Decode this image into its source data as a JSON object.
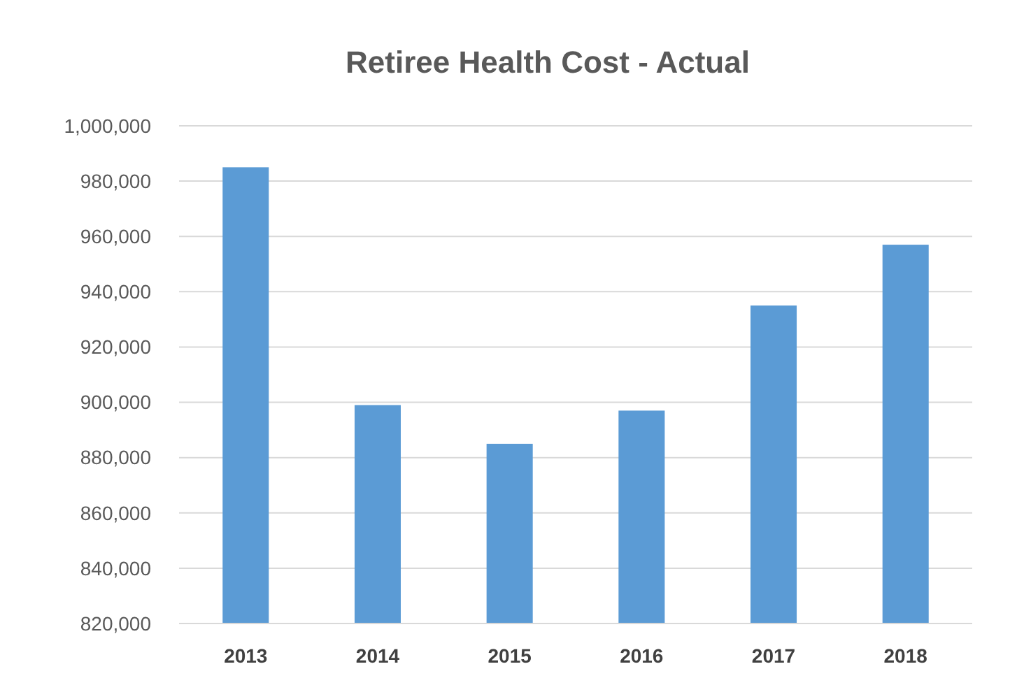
{
  "chart_data": {
    "type": "bar",
    "title": "Retiree Health Cost - Actual",
    "categories": [
      "2013",
      "2014",
      "2015",
      "2016",
      "2017",
      "2018"
    ],
    "values": [
      985000,
      899000,
      885000,
      897000,
      935000,
      957000
    ],
    "color": "#5b9bd5",
    "ylim": [
      820000,
      1000000
    ],
    "yticks": [
      {
        "value": 820000,
        "label": "820,000"
      },
      {
        "value": 840000,
        "label": "840,000"
      },
      {
        "value": 860000,
        "label": "860,000"
      },
      {
        "value": 880000,
        "label": "880,000"
      },
      {
        "value": 900000,
        "label": "900,000"
      },
      {
        "value": 920000,
        "label": "920,000"
      },
      {
        "value": 940000,
        "label": "940,000"
      },
      {
        "value": 960000,
        "label": "960,000"
      },
      {
        "value": 980000,
        "label": "980,000"
      },
      {
        "value": 1000000,
        "label": "1,000,000"
      }
    ],
    "grid": "y"
  }
}
